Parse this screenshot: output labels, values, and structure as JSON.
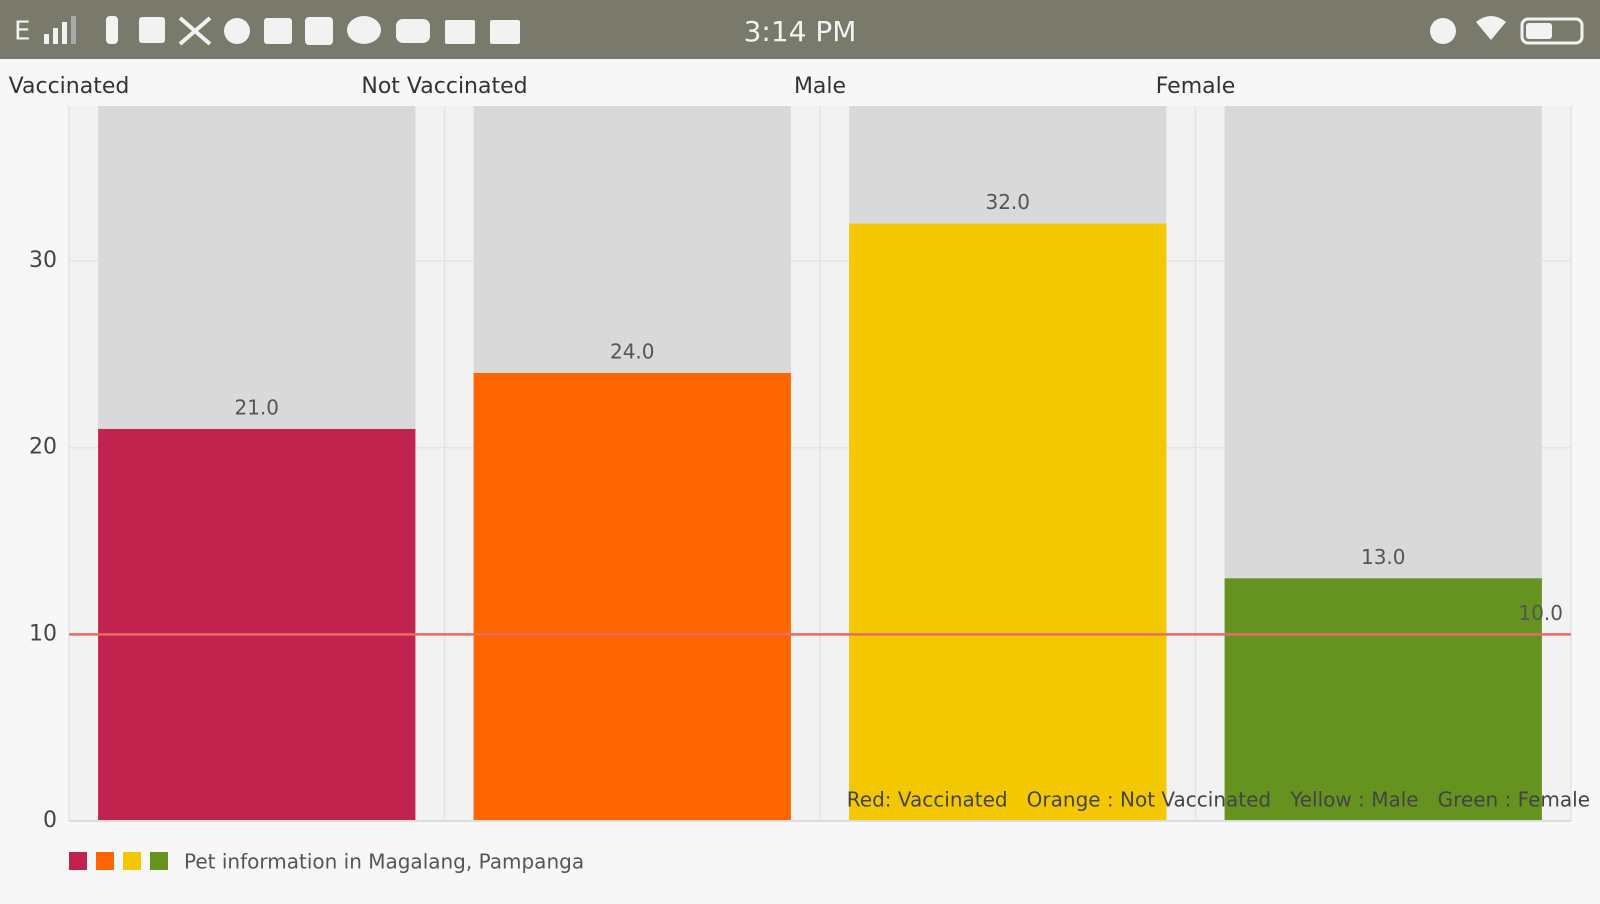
{
  "status_bar": {
    "network": "E",
    "time": "3:14 PM"
  },
  "chart_data": {
    "type": "bar",
    "categories": [
      "Vaccinated",
      "Not Vaccinated",
      "Male",
      "Female"
    ],
    "series": [
      {
        "name": "Pet information in Magalang, Pampanga",
        "colors": [
          "#c0234d",
          "#ff6600",
          "#f4c800",
          "#66921f"
        ],
        "values": [
          21,
          24,
          32,
          13
        ],
        "value_labels": [
          "21.0",
          "24.0",
          "32.0",
          "13.0"
        ]
      }
    ],
    "ylim": [
      0,
      38.3
    ],
    "yticks": [
      0,
      10,
      20,
      30
    ],
    "grid": true,
    "limit_line": {
      "value": 10,
      "label": "10.0",
      "color": "#e86a6a"
    },
    "description": "Red: Vaccinated   Orange : Not Vaccinated   Yellow : Male   Green : Female"
  }
}
